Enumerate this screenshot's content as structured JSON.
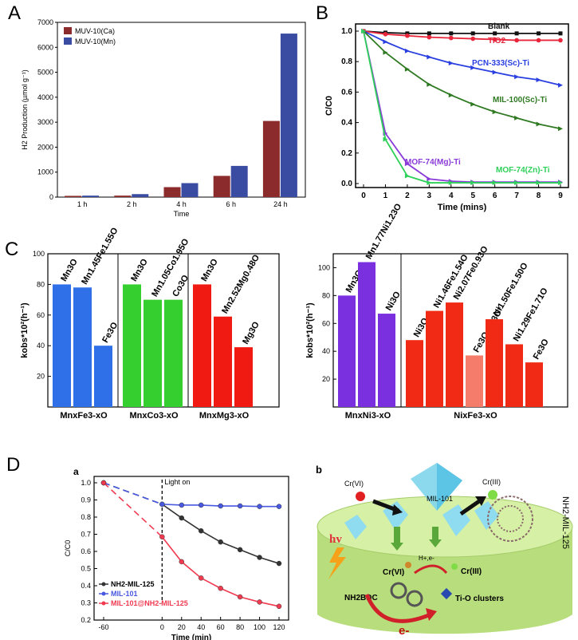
{
  "panels": {
    "A": "A",
    "B": "B",
    "C": "C",
    "D": "D"
  },
  "chart_data": [
    {
      "id": "A",
      "type": "bar",
      "title": "",
      "xlabel": "Time",
      "ylabel": "H2 Production (µmol g⁻¹)",
      "ylim": [
        0,
        7000
      ],
      "yticks": [
        "0",
        "1000",
        "2000",
        "3000",
        "4000",
        "5000",
        "6000",
        "7000"
      ],
      "categories": [
        "1 h",
        "2 h",
        "4 h",
        "6 h",
        "24 h"
      ],
      "series": [
        {
          "name": "MUV-10(Ca)",
          "color": "#8b2b2b",
          "values": [
            50,
            60,
            400,
            850,
            3050
          ]
        },
        {
          "name": "MUV-10(Mn)",
          "color": "#3a4ca2",
          "values": [
            60,
            120,
            560,
            1250,
            6550
          ]
        }
      ]
    },
    {
      "id": "B",
      "type": "line",
      "xlabel": "Time (mins)",
      "ylabel": "C/C0",
      "xlim": [
        0,
        9
      ],
      "ylim": [
        0,
        1
      ],
      "xticks": [
        "0",
        "1",
        "2",
        "3",
        "4",
        "5",
        "6",
        "7",
        "8",
        "9"
      ],
      "yticks": [
        "0.0",
        "0.2",
        "0.4",
        "0.6",
        "0.8",
        "1.0"
      ],
      "x": [
        0,
        1,
        2,
        3,
        4,
        5,
        6,
        7,
        8,
        9
      ],
      "series": [
        {
          "name": "Blank",
          "color": "#111111",
          "values": [
            1.0,
            0.99,
            0.985,
            0.985,
            0.985,
            0.985,
            0.985,
            0.985,
            0.985,
            0.985
          ]
        },
        {
          "name": "TiO2",
          "color": "#e8253a",
          "values": [
            1.0,
            0.98,
            0.97,
            0.96,
            0.955,
            0.95,
            0.945,
            0.94,
            0.94,
            0.94
          ]
        },
        {
          "name": "PCN-333(Sc)-Ti",
          "color": "#2a3fe0",
          "values": [
            1.0,
            0.93,
            0.87,
            0.83,
            0.79,
            0.76,
            0.73,
            0.7,
            0.68,
            0.645
          ]
        },
        {
          "name": "MIL-100(Sc)-Ti",
          "color": "#2f7a22",
          "values": [
            1.0,
            0.86,
            0.75,
            0.65,
            0.58,
            0.52,
            0.47,
            0.43,
            0.39,
            0.36
          ]
        },
        {
          "name": "MOF-74(Mg)-Ti",
          "color": "#8a3ad8",
          "values": [
            1.0,
            0.33,
            0.13,
            0.03,
            0.015,
            0.01,
            0.01,
            0.01,
            0.01,
            0.01
          ]
        },
        {
          "name": "MOF-74(Zn)-Ti",
          "color": "#2fd05a",
          "values": [
            1.0,
            0.29,
            0.05,
            0.005,
            0.005,
            0.005,
            0.005,
            0.005,
            0.005,
            0.005
          ]
        }
      ]
    },
    {
      "id": "C-left",
      "type": "bar",
      "ylabel": "kobs*10²(h⁻¹)",
      "ylim": [
        0,
        100
      ],
      "yticks": [
        "20",
        "40",
        "60",
        "80",
        "100"
      ],
      "groups": [
        {
          "name": "MnxFe3-xO",
          "color": "#2f6fe8",
          "bars": [
            {
              "label": "Mn3O",
              "value": 80
            },
            {
              "label": "Mn1.45Fe1.55O",
              "value": 78
            },
            {
              "label": "Fe3O",
              "value": 40
            }
          ]
        },
        {
          "name": "MnxCo3-xO",
          "color": "#35d02f",
          "bars": [
            {
              "label": "Mn3O",
              "value": 80
            },
            {
              "label": "Mn1.05Co1.95O",
              "value": 70
            },
            {
              "label": "Co3O",
              "value": 70
            }
          ]
        },
        {
          "name": "MnxMg3-xO",
          "color": "#f01a12",
          "bars": [
            {
              "label": "Mn3O",
              "value": 80
            },
            {
              "label": "Mn2.52Mg0.48O",
              "value": 59
            },
            {
              "label": "Mg3O",
              "value": 39
            }
          ]
        }
      ]
    },
    {
      "id": "C-right",
      "type": "bar",
      "ylabel": "kobs*10²(h⁻¹)",
      "ylim": [
        0,
        110
      ],
      "yticks": [
        "20",
        "40",
        "60",
        "80",
        "100"
      ],
      "groups": [
        {
          "name": "MnxNi3-xO",
          "color": "#7b30e0",
          "bars": [
            {
              "label": "Mn3O",
              "value": 80
            },
            {
              "label": "Mn1.77Ni1.23O",
              "value": 104
            },
            {
              "label": "Ni3O",
              "value": 67
            }
          ]
        },
        {
          "name": "NixFe3-xO",
          "color": "#f02a14",
          "bars": [
            {
              "label": "Ni3O",
              "value": 48
            },
            {
              "label": "Ni1.46Fe1.54O",
              "value": 69
            },
            {
              "label": "Ni2.07Fe0.93O",
              "value": 75
            },
            {
              "label": "Fe3O+Ni3O*",
              "value": 37,
              "color": "#f57b6a"
            },
            {
              "label": "Ni1.50Fe1.50O",
              "value": 63
            },
            {
              "label": "Ni1.29Fe1.71O",
              "value": 45
            },
            {
              "label": "Fe3O",
              "value": 32
            }
          ]
        }
      ]
    },
    {
      "id": "D-a",
      "type": "line",
      "panel_label": "a",
      "annotation": "Light on",
      "xlabel": "Time (min)",
      "ylabel": "C/C0",
      "xlim": [
        -60,
        120
      ],
      "ylim": [
        0.2,
        1.0
      ],
      "xticks": [
        "-60",
        "0",
        "20",
        "40",
        "60",
        "80",
        "100",
        "120"
      ],
      "yticks": [
        "0.2",
        "0.3",
        "0.4",
        "0.5",
        "0.6",
        "0.7",
        "0.8",
        "0.9",
        "1.0"
      ],
      "x": [
        -60,
        0,
        20,
        40,
        60,
        80,
        100,
        120
      ],
      "series": [
        {
          "name": "NH2-MIL-125",
          "color": "#333333",
          "values": [
            1.0,
            0.875,
            0.795,
            0.72,
            0.655,
            0.61,
            0.565,
            0.53
          ]
        },
        {
          "name": "MIL-101",
          "color": "#4858e0",
          "values": [
            1.0,
            0.875,
            0.87,
            0.87,
            0.865,
            0.865,
            0.862,
            0.862
          ]
        },
        {
          "name": "MIL-101@NH2-MIL-125",
          "color": "#f03a50",
          "values": [
            1.0,
            0.685,
            0.54,
            0.445,
            0.385,
            0.335,
            0.305,
            0.28
          ]
        }
      ]
    }
  ],
  "schematic": {
    "panel_label": "b",
    "labels": {
      "cr6_top": "Cr(VI)",
      "cr3_top": "Cr(III)",
      "mil101": "MIL-101",
      "hv": "hv",
      "nh2mil125": "NH2-MIL-125",
      "h_e": "H+,e-",
      "cr6_mid": "Cr(VI)",
      "cr3_mid": "Cr(III)",
      "nh2bdc": "NH2BDC",
      "tio": "Ti-O clusters",
      "e": "e-"
    }
  }
}
